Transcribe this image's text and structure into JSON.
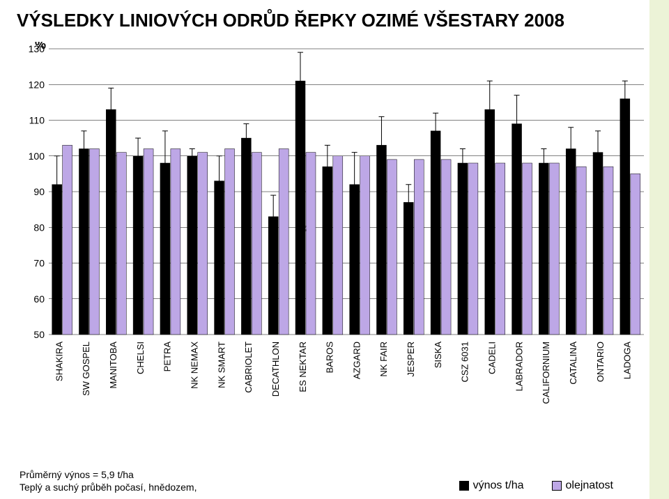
{
  "title": "VÝSLEDKY LINIOVÝCH ODRŮD ŘEPKY OZIMÉ VŠESTARY 2008",
  "y_label": "%",
  "footer_line1": "Průměrný výnos = 5,9 t/ha",
  "footer_line2": "Teplý a suchý průběh počasí, hnědozem,",
  "legend": {
    "series1": "výnos t/ha",
    "series2": "olejnatost"
  },
  "chart": {
    "type": "bar",
    "background_color": "#ffffff",
    "plot_bg": "#ffffff",
    "grid_color": "#000000",
    "grid_width": 0.5,
    "bar_border": "#000000",
    "series_colors": {
      "vynos": "#000000",
      "olejnatost": "#bda7e6"
    },
    "error_color": "#000000",
    "ylim": [
      50,
      130
    ],
    "yticks": [
      50,
      60,
      70,
      80,
      90,
      100,
      110,
      120,
      130
    ],
    "tick_fontsize": 14,
    "cat_fontsize": 13,
    "categories": [
      "SHAKIRA",
      "SW GOSPEL",
      "MANITOBA",
      "CHELSI",
      "PETRA",
      "NK NEMAX",
      "NK SMART",
      "CABRIOLET",
      "DECATHLON",
      "ES NEKTAR",
      "BAROS",
      "AZGARD",
      "NK FAIR",
      "JESPER",
      "SISKA",
      "CSZ 6031",
      "CADELI",
      "LABRADOR",
      "CALIFORNIUM",
      "CATALINA",
      "ONTARIO",
      "LADOGA"
    ],
    "vynos": [
      92,
      102,
      113,
      100,
      98,
      100,
      93,
      105,
      83,
      121,
      97,
      92,
      103,
      87,
      107,
      98,
      113,
      109,
      98,
      102,
      101,
      116
    ],
    "olejnatost": [
      103,
      102,
      101,
      102,
      102,
      101,
      102,
      101,
      102,
      101,
      100,
      100,
      99,
      99,
      99,
      98,
      98,
      98,
      98,
      97,
      97,
      95
    ],
    "err_low": [
      8,
      6,
      5,
      5,
      8,
      2,
      8,
      3,
      6,
      5,
      3,
      8,
      6,
      8,
      5,
      4,
      5,
      7,
      3,
      6,
      5,
      3
    ],
    "err_high": [
      8,
      5,
      6,
      5,
      9,
      2,
      7,
      4,
      6,
      8,
      6,
      9,
      8,
      5,
      5,
      4,
      8,
      8,
      4,
      6,
      6,
      5
    ]
  }
}
